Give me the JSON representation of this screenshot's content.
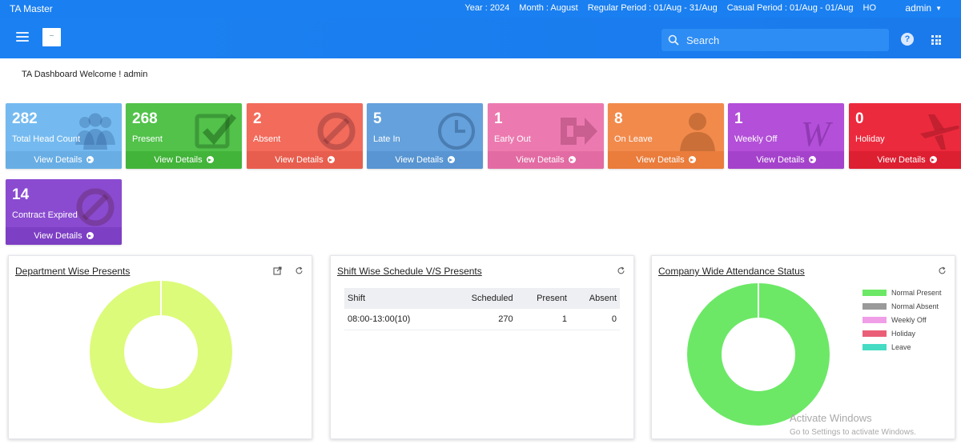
{
  "topbar": {
    "app_title": "TA Master",
    "year": "Year : 2024",
    "month": "Month : August",
    "regular_period": "Regular Period : 01/Aug - 31/Aug",
    "casual_period": "Casual Period : 01/Aug - 01/Aug",
    "location": "HO",
    "user": "admin"
  },
  "header": {
    "search_placeholder": "Search",
    "help_glyph": "?"
  },
  "welcome": "TA Dashboard Welcome ! admin",
  "tiles": [
    {
      "value": "282",
      "label": "Total Head Count",
      "link": "View Details",
      "color": "#74baf0",
      "foot": "#68aee5",
      "icon": "users-icon"
    },
    {
      "value": "268",
      "label": "Present",
      "link": "View Details",
      "color": "#52c24a",
      "foot": "#42b43a",
      "icon": "checkbox-icon"
    },
    {
      "value": "2",
      "label": "Absent",
      "link": "View Details",
      "color": "#f26b5b",
      "foot": "#e85e4e",
      "icon": "ban-icon"
    },
    {
      "value": "5",
      "label": "Late In",
      "link": "View Details",
      "color": "#65a1dc",
      "foot": "#5895d2",
      "icon": "clock-icon"
    },
    {
      "value": "1",
      "label": "Early Out",
      "link": "View Details",
      "color": "#ec7ab0",
      "foot": "#e36ba3",
      "icon": "exit-icon"
    },
    {
      "value": "8",
      "label": "On Leave",
      "link": "View Details",
      "color": "#f28a4c",
      "foot": "#ea7c3c",
      "icon": "person-icon"
    },
    {
      "value": "1",
      "label": "Weekly Off",
      "link": "View Details",
      "color": "#b34fd8",
      "foot": "#a542cb",
      "icon": "w-icon"
    },
    {
      "value": "0",
      "label": "Holiday",
      "link": "View Details",
      "color": "#ec2a3d",
      "foot": "#dd1f32",
      "icon": "airplane-icon"
    },
    {
      "value": "14",
      "label": "Contract Expired",
      "link": "View Details",
      "color": "#8a4bd0",
      "foot": "#7d3fc4",
      "icon": "ban-icon"
    }
  ],
  "panels": {
    "department": {
      "title": "Department Wise Presents"
    },
    "shift": {
      "title": "Shift Wise Schedule V/S Presents",
      "columns": [
        "Shift",
        "Scheduled",
        "Present",
        "Absent"
      ],
      "rows": [
        [
          "08:00-13:00(10)",
          "270",
          "1",
          "0"
        ]
      ]
    },
    "company": {
      "title": "Company Wide Attendance Status",
      "legend": [
        {
          "label": "Normal Present",
          "color": "#6ce866"
        },
        {
          "label": "Normal Absent",
          "color": "#9a9a9a"
        },
        {
          "label": "Weekly Off",
          "color": "#f09ee8"
        },
        {
          "label": "Holiday",
          "color": "#ea5f77"
        },
        {
          "label": "Leave",
          "color": "#45dcc3"
        }
      ]
    }
  },
  "chart_data": [
    {
      "type": "pie",
      "title": "Department Wise Presents",
      "slices": [
        {
          "label": "",
          "value": 1,
          "color": "#dcfb7a"
        }
      ]
    },
    {
      "type": "pie",
      "title": "Company Wide Attendance Status",
      "slices": [
        {
          "label": "Normal Present",
          "value": 1,
          "color": "#6ce866"
        },
        {
          "label": "Normal Absent",
          "value": 0,
          "color": "#9a9a9a"
        },
        {
          "label": "Weekly Off",
          "value": 0,
          "color": "#f09ee8"
        },
        {
          "label": "Holiday",
          "value": 0,
          "color": "#ea5f77"
        },
        {
          "label": "Leave",
          "value": 0,
          "color": "#45dcc3"
        }
      ],
      "legend": "right"
    }
  ],
  "watermark": {
    "line1": "Activate Windows",
    "line2": "Go to Settings to activate Windows."
  }
}
